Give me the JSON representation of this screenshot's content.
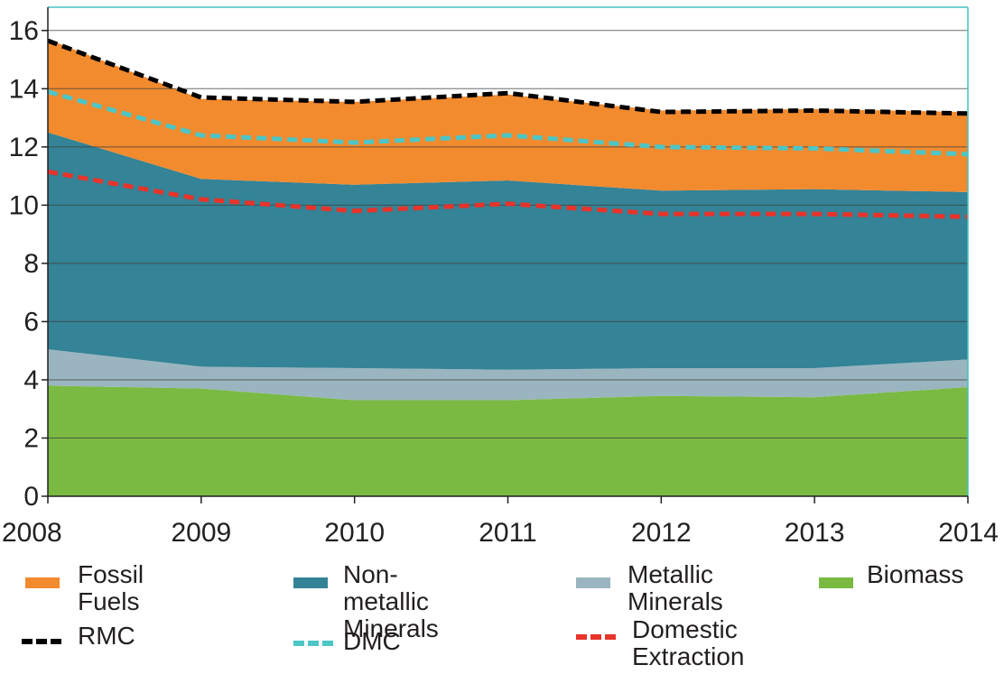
{
  "chart_data": {
    "type": "area",
    "x": [
      "2008",
      "2009",
      "2010",
      "2011",
      "2012",
      "2013",
      "2014"
    ],
    "stacked_series": [
      {
        "name": "Biomass",
        "color": "#7aba43",
        "values": [
          3.8,
          3.7,
          3.3,
          3.3,
          3.45,
          3.4,
          3.75
        ]
      },
      {
        "name": "Metallic Minerals",
        "color": "#9ab5bf",
        "values": [
          1.25,
          0.75,
          1.1,
          1.05,
          0.95,
          1.0,
          0.95
        ]
      },
      {
        "name": "Non-metallic Minerals",
        "color": "#348396",
        "values": [
          7.45,
          6.45,
          6.3,
          6.5,
          6.1,
          6.15,
          5.75
        ]
      },
      {
        "name": "Fossil Fuels",
        "color": "#f28a2e",
        "values": [
          3.2,
          2.75,
          2.85,
          2.95,
          2.75,
          2.75,
          2.75
        ]
      }
    ],
    "line_series": [
      {
        "name": "RMC",
        "color": "#000000",
        "values": [
          15.65,
          13.7,
          13.55,
          13.85,
          13.2,
          13.25,
          13.15
        ]
      },
      {
        "name": "DMC",
        "color": "#4cc6c6",
        "values": [
          13.9,
          12.4,
          12.15,
          12.4,
          12.0,
          11.95,
          11.75
        ]
      },
      {
        "name": "Domestic Extraction",
        "color": "#e8332a",
        "values": [
          11.15,
          10.2,
          9.8,
          10.05,
          9.7,
          9.7,
          9.6
        ]
      }
    ],
    "yticks": [
      "0",
      "2",
      "4",
      "6",
      "8",
      "10",
      "12",
      "14",
      "16"
    ],
    "ylim": [
      0,
      16.8
    ],
    "grid": true,
    "frame_color": "#42c2c2",
    "legend_position": "bottom"
  },
  "legend": {
    "fossil": "Fossil\nFuels",
    "nonmetallic": "Non-metallic\nMinerals",
    "metallic": "Metallic\nMinerals",
    "biomass": "Biomass",
    "rmc": "RMC",
    "dmc": "DMC",
    "de": "Domestic\nExtraction"
  },
  "colors": {
    "fossil": "#f28a2e",
    "nonmetallic": "#348396",
    "metallic": "#9ab5bf",
    "biomass": "#7aba43",
    "rmc": "#000000",
    "dmc": "#4cc6c6",
    "de": "#e8332a"
  }
}
